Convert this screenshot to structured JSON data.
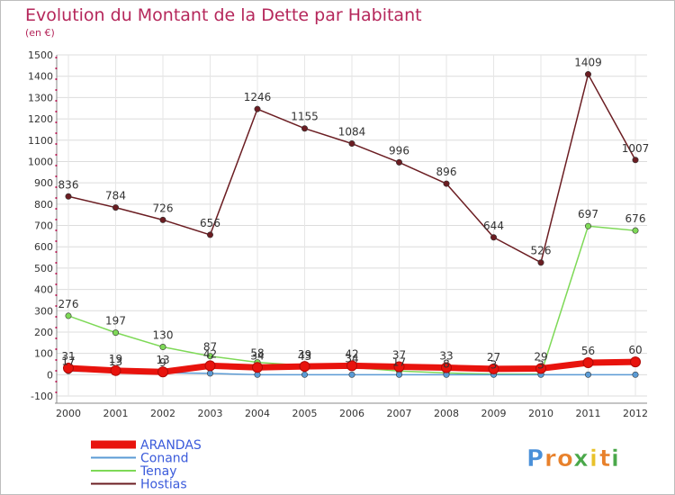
{
  "chart_data": {
    "type": "line",
    "title": "Evolution du Montant de la Dette par Habitant",
    "subtitle": "(en €)",
    "x": [
      "2000",
      "2001",
      "2002",
      "2003",
      "2004",
      "2005",
      "2006",
      "2007",
      "2008",
      "2009",
      "2010",
      "2011",
      "2012"
    ],
    "ylim": [
      -100,
      1500
    ],
    "yticks": [
      -100,
      0,
      100,
      200,
      300,
      400,
      500,
      600,
      700,
      800,
      900,
      1000,
      1100,
      1200,
      1300,
      1400,
      1500
    ],
    "grid": true,
    "legend_position": "bottom-left",
    "series": [
      {
        "name": "ARANDAS",
        "color": "#e8130d",
        "values": [
          31,
          19,
          13,
          42,
          34,
          39,
          42,
          37,
          33,
          27,
          29,
          56,
          60
        ],
        "labels": [
          "31",
          "19",
          "13",
          "42",
          "34",
          "39",
          "42",
          "37",
          "33",
          "27",
          "29",
          "56",
          "60"
        ]
      },
      {
        "name": "Conand",
        "color": "#5b9bd5",
        "values": [
          17,
          13,
          9,
          6,
          0,
          0,
          0,
          0,
          0,
          0,
          0,
          0,
          0
        ],
        "labels": [
          "17",
          "13",
          "9",
          "",
          "",
          "",
          "",
          "",
          "",
          "",
          "",
          "",
          ""
        ]
      },
      {
        "name": "Tenay",
        "color": "#7ed957",
        "values": [
          276,
          197,
          130,
          87,
          58,
          43,
          34,
          17,
          8,
          3,
          3,
          697,
          676
        ],
        "labels": [
          "276",
          "197",
          "130",
          "87",
          "58",
          "43",
          "34",
          "17",
          "8",
          "3",
          "3",
          "697",
          "676"
        ]
      },
      {
        "name": "Hostias",
        "color": "#6b1d22",
        "values": [
          836,
          784,
          726,
          656,
          1246,
          1155,
          1084,
          996,
          896,
          644,
          526,
          1409,
          1007
        ],
        "labels": [
          "836",
          "784",
          "726",
          "656",
          "1246",
          "1155",
          "1084",
          "996",
          "896",
          "644",
          "526",
          "1409",
          "1007"
        ]
      }
    ]
  },
  "brand": {
    "letters": [
      "P",
      "r",
      "o",
      "x",
      "i",
      "t",
      "i"
    ],
    "colors": [
      "#4a90d9",
      "#e8812b",
      "#e8812b",
      "#4aa84a",
      "#e8c22b",
      "#e8812b",
      "#4aa84a"
    ]
  }
}
